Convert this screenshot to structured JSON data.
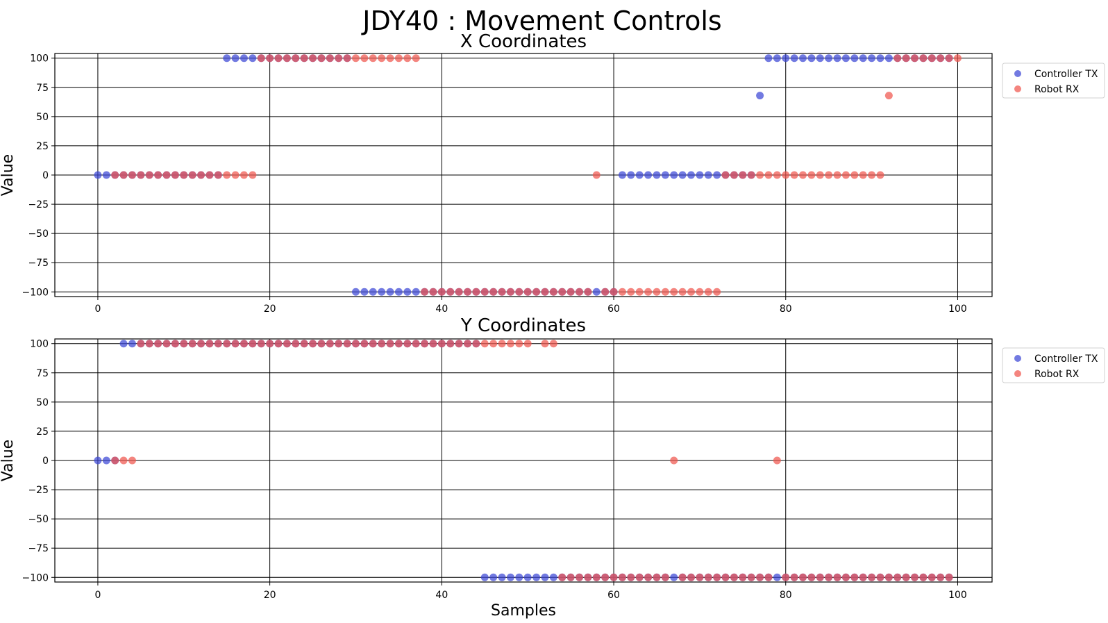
{
  "chart_data": {
    "title": "JDY40 : Movement Controls",
    "colors": {
      "Controller TX": "#3c46d6",
      "Robot RX": "#f0564e"
    },
    "charts": [
      {
        "type": "scatter",
        "title": "X Coordinates",
        "xlabel": "",
        "ylabel": "Value",
        "xlim": [
          -5,
          104
        ],
        "ylim": [
          -104,
          104
        ],
        "xticks": [
          "0",
          "20",
          "40",
          "60",
          "80",
          "100"
        ],
        "yticks": [
          "100",
          "75",
          "50",
          "25",
          "0",
          "−25",
          "−50",
          "−75",
          "−100"
        ],
        "grid": true,
        "legend_position": "outside-right",
        "series": [
          {
            "name": "Controller TX",
            "values": [
              0,
              0,
              0,
              0,
              0,
              0,
              0,
              0,
              0,
              0,
              0,
              0,
              0,
              0,
              0,
              100,
              100,
              100,
              100,
              100,
              100,
              100,
              100,
              100,
              100,
              100,
              100,
              100,
              100,
              100,
              -100,
              -100,
              -100,
              -100,
              -100,
              -100,
              -100,
              -100,
              -100,
              -100,
              -100,
              -100,
              -100,
              -100,
              -100,
              -100,
              -100,
              -100,
              -100,
              -100,
              -100,
              -100,
              -100,
              -100,
              -100,
              -100,
              -100,
              -100,
              -100,
              -100,
              -100,
              0,
              0,
              0,
              0,
              0,
              0,
              0,
              0,
              0,
              0,
              0,
              0,
              0,
              0,
              0,
              0,
              68,
              100,
              100,
              100,
              100,
              100,
              100,
              100,
              100,
              100,
              100,
              100,
              100,
              100,
              100,
              100,
              100,
              100,
              100,
              100,
              100,
              100,
              100
            ]
          },
          {
            "name": "Robot RX",
            "start": 2,
            "values": [
              0,
              0,
              0,
              0,
              0,
              0,
              0,
              0,
              0,
              0,
              0,
              0,
              0,
              0,
              0,
              0,
              0,
              100,
              100,
              100,
              100,
              100,
              100,
              100,
              100,
              100,
              100,
              100,
              100,
              100,
              100,
              100,
              100,
              100,
              100,
              100,
              -100,
              -100,
              -100,
              -100,
              -100,
              -100,
              -100,
              -100,
              -100,
              -100,
              -100,
              -100,
              -100,
              -100,
              -100,
              -100,
              -100,
              -100,
              -100,
              -100,
              0,
              -100,
              -100,
              -100,
              -100,
              -100,
              -100,
              -100,
              -100,
              -100,
              -100,
              -100,
              -100,
              -100,
              -100,
              0,
              0,
              0,
              0,
              0,
              0,
              0,
              0,
              0,
              0,
              0,
              0,
              0,
              0,
              0,
              0,
              0,
              0,
              0,
              68,
              100,
              100,
              100,
              100,
              100,
              100,
              100,
              100
            ]
          }
        ]
      },
      {
        "type": "scatter",
        "title": "Y Coordinates",
        "xlabel": "Samples",
        "ylabel": "Value",
        "xlim": [
          -5,
          104
        ],
        "ylim": [
          -104,
          104
        ],
        "xticks": [
          "0",
          "20",
          "40",
          "60",
          "80",
          "100"
        ],
        "yticks": [
          "100",
          "75",
          "50",
          "25",
          "0",
          "−25",
          "−50",
          "−75",
          "−100"
        ],
        "grid": true,
        "legend_position": "outside-right",
        "series": [
          {
            "name": "Controller TX",
            "values": [
              0,
              0,
              0,
              100,
              100,
              100,
              100,
              100,
              100,
              100,
              100,
              100,
              100,
              100,
              100,
              100,
              100,
              100,
              100,
              100,
              100,
              100,
              100,
              100,
              100,
              100,
              100,
              100,
              100,
              100,
              100,
              100,
              100,
              100,
              100,
              100,
              100,
              100,
              100,
              100,
              100,
              100,
              100,
              100,
              100,
              -100,
              -100,
              -100,
              -100,
              -100,
              -100,
              -100,
              -100,
              -100,
              -100,
              -100,
              -100,
              -100,
              -100,
              -100,
              -100,
              -100,
              -100,
              -100,
              -100,
              -100,
              -100,
              -100,
              -100,
              -100,
              -100,
              -100,
              -100,
              -100,
              -100,
              -100,
              -100,
              -100,
              -100,
              -100,
              -100,
              -100,
              -100,
              -100,
              -100,
              -100,
              -100,
              -100,
              -100,
              -100,
              -100,
              -100,
              -100,
              -100,
              -100,
              -100,
              -100,
              -100,
              -100,
              -100
            ]
          },
          {
            "name": "Robot RX",
            "start": 2,
            "values": [
              0,
              0,
              0,
              100,
              100,
              100,
              100,
              100,
              100,
              100,
              100,
              100,
              100,
              100,
              100,
              100,
              100,
              100,
              100,
              100,
              100,
              100,
              100,
              100,
              100,
              100,
              100,
              100,
              100,
              100,
              100,
              100,
              100,
              100,
              100,
              100,
              100,
              100,
              100,
              100,
              100,
              100,
              100,
              100,
              100,
              100,
              100,
              100,
              100,
              null,
              100,
              100,
              -100,
              -100,
              -100,
              -100,
              -100,
              -100,
              -100,
              -100,
              -100,
              -100,
              -100,
              -100,
              -100,
              0,
              -100,
              -100,
              -100,
              -100,
              -100,
              -100,
              -100,
              -100,
              -100,
              -100,
              -100,
              0,
              -100,
              -100,
              -100,
              -100,
              -100,
              -100,
              -100,
              -100,
              -100,
              -100,
              -100,
              -100,
              -100,
              -100,
              -100,
              -100,
              -100,
              -100,
              -100,
              -100
            ]
          }
        ]
      }
    ]
  }
}
